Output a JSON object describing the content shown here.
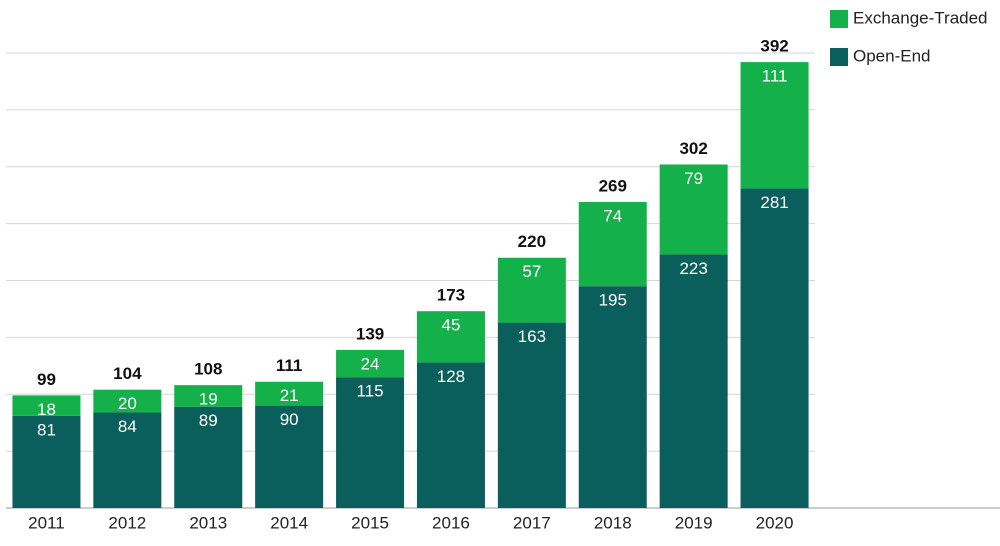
{
  "chart_data": {
    "type": "stacked-bar",
    "categories": [
      "2011",
      "2012",
      "2013",
      "2014",
      "2015",
      "2016",
      "2017",
      "2018",
      "2019",
      "2020"
    ],
    "series": [
      {
        "name": "Open-End",
        "color": "#0a5e5b",
        "values": [
          81,
          84,
          89,
          90,
          115,
          128,
          163,
          195,
          223,
          281
        ]
      },
      {
        "name": "Exchange-Traded",
        "color": "#14b04a",
        "values": [
          18,
          20,
          19,
          21,
          24,
          45,
          57,
          74,
          79,
          111
        ]
      }
    ],
    "totals": [
      99,
      104,
      108,
      111,
      139,
      173,
      220,
      269,
      302,
      392
    ],
    "ylim": [
      0,
      400
    ],
    "yticks": [
      0,
      50,
      100,
      150,
      200,
      250,
      300,
      350,
      400
    ],
    "grid": true
  }
}
